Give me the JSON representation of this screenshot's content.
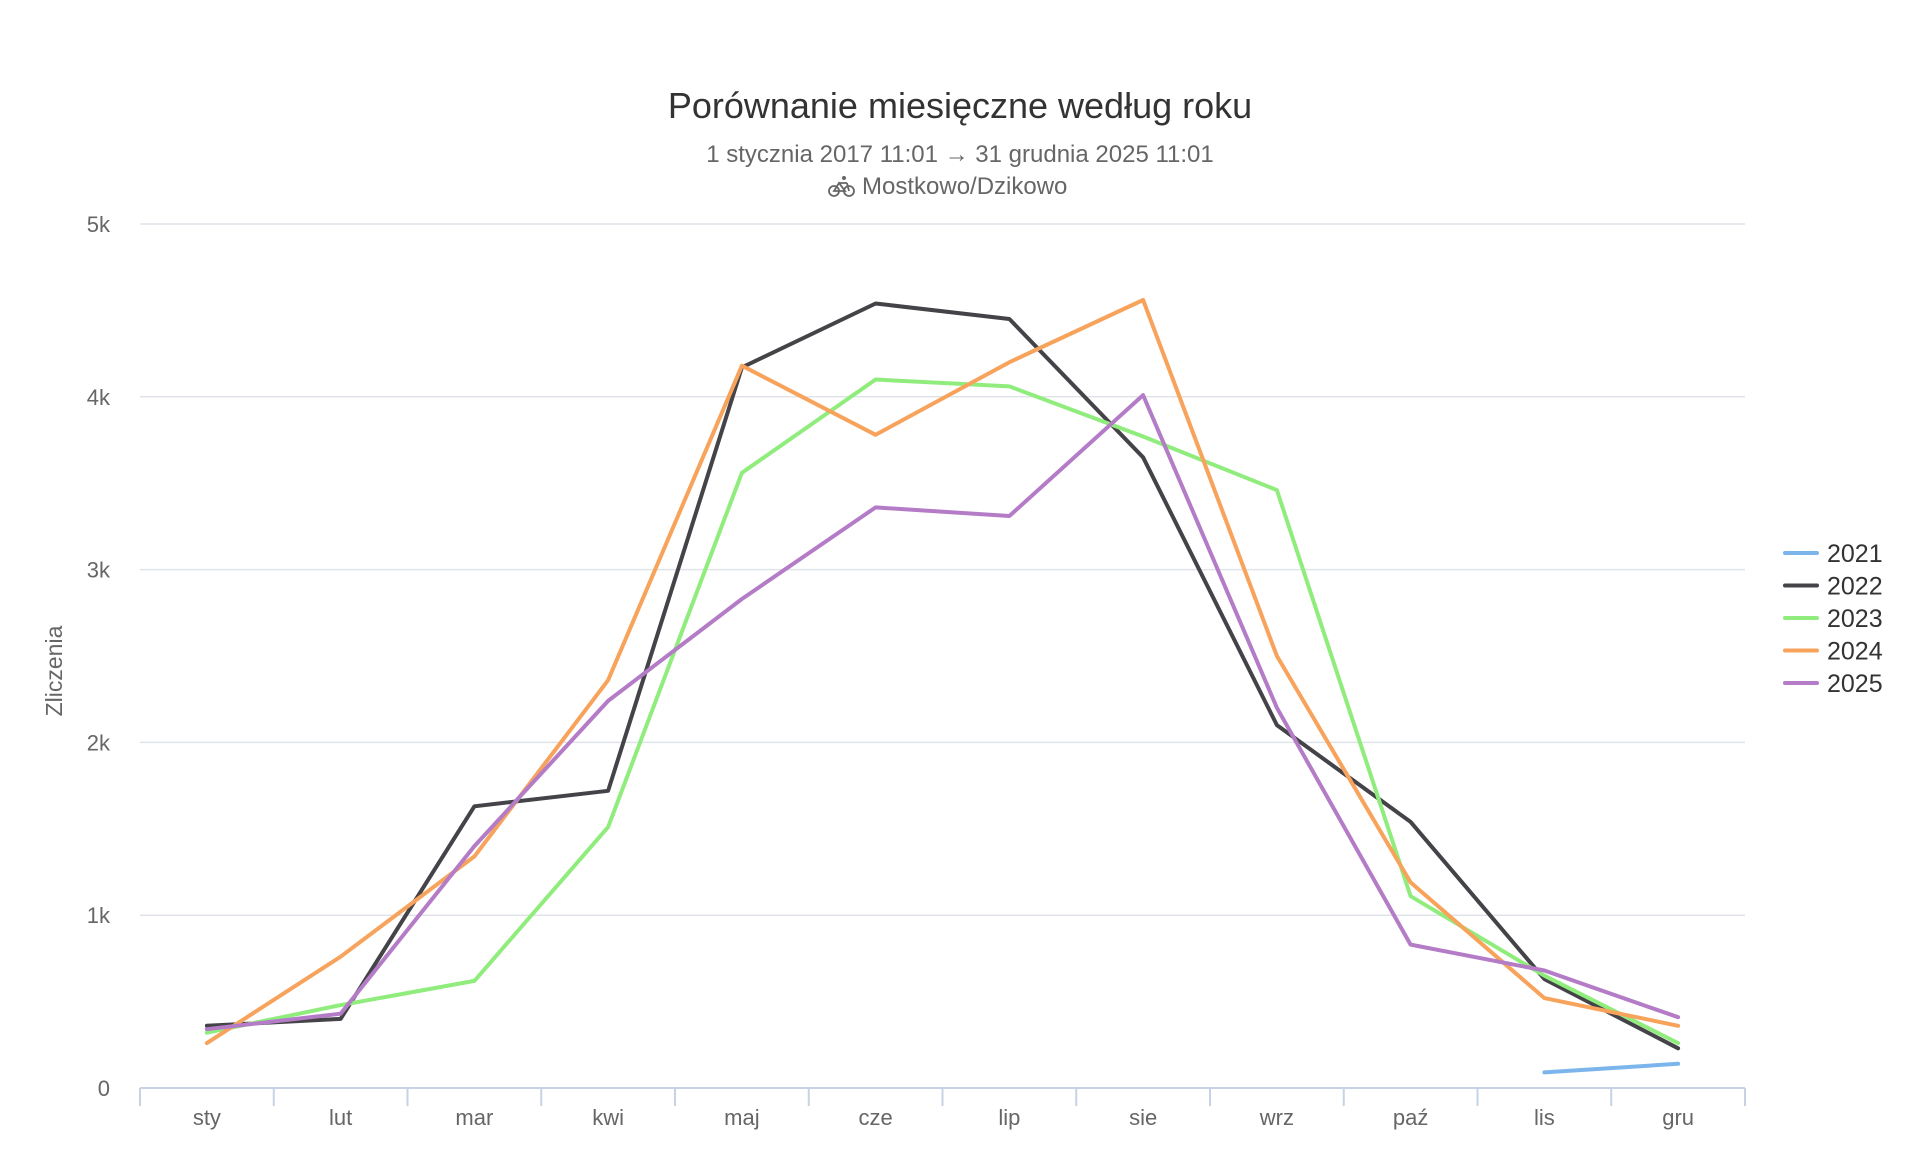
{
  "chart_data": {
    "type": "line",
    "title": "Porównanie miesięczne według roku",
    "subtitle_line1": "1 stycznia 2017 11:01 → 31 grudnia 2025 11:01",
    "subtitle_line2": "Mostkowo/Dzikowo",
    "subtitle_icon": "bicycle-icon",
    "ylabel": "Zliczenia",
    "xlabel": "",
    "ylim": [
      0,
      5000
    ],
    "yticks": [
      {
        "value": 0,
        "label": "0"
      },
      {
        "value": 1000,
        "label": "1k"
      },
      {
        "value": 2000,
        "label": "2k"
      },
      {
        "value": 3000,
        "label": "3k"
      },
      {
        "value": 4000,
        "label": "4k"
      },
      {
        "value": 5000,
        "label": "5k"
      }
    ],
    "categories": [
      "sty",
      "lut",
      "mar",
      "kwi",
      "maj",
      "cze",
      "lip",
      "sie",
      "wrz",
      "paź",
      "lis",
      "gru"
    ],
    "legend_position": "right",
    "grid": true,
    "series": [
      {
        "name": "2021",
        "color": "#7cb5ec",
        "values": [
          null,
          null,
          null,
          null,
          null,
          null,
          null,
          null,
          null,
          null,
          90,
          140
        ]
      },
      {
        "name": "2022",
        "color": "#434348",
        "values": [
          360,
          400,
          1630,
          1720,
          4170,
          4540,
          4450,
          3650,
          2100,
          1540,
          630,
          230
        ]
      },
      {
        "name": "2023",
        "color": "#90ed7d",
        "values": [
          320,
          480,
          620,
          1510,
          3560,
          4100,
          4060,
          3770,
          3460,
          1110,
          650,
          260
        ]
      },
      {
        "name": "2024",
        "color": "#f7a35c",
        "values": [
          260,
          760,
          1340,
          2360,
          4180,
          3780,
          4200,
          4560,
          2500,
          1190,
          520,
          360
        ]
      },
      {
        "name": "2025",
        "color": "#b47cc7",
        "values": [
          340,
          430,
          1400,
          2240,
          2830,
          3360,
          3310,
          4010,
          2200,
          830,
          680,
          410
        ]
      }
    ]
  }
}
